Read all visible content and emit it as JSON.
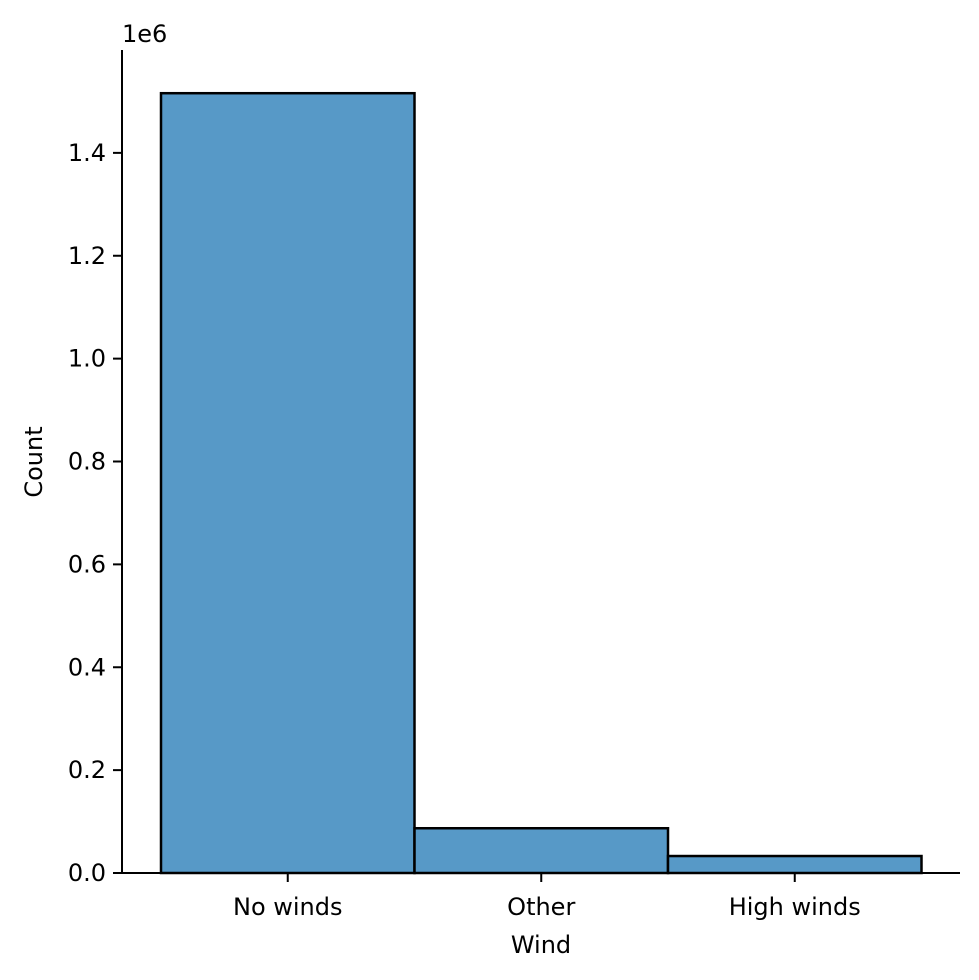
{
  "chart_data": {
    "type": "bar",
    "categories": [
      "No winds",
      "Other",
      "High winds"
    ],
    "values": [
      1516000,
      87000,
      33000
    ],
    "xlabel": "Wind",
    "ylabel": "Count",
    "ylim": [
      0,
      1600000
    ],
    "yticks": [
      0,
      200000,
      400000,
      600000,
      800000,
      1000000,
      1200000,
      1400000
    ],
    "ytick_labels": [
      "0.0",
      "0.2",
      "0.4",
      "0.6",
      "0.8",
      "1.0",
      "1.2",
      "1.4"
    ],
    "y_offset_label": "1e6",
    "grid": false,
    "legend": "none",
    "colors": {
      "bar_fill": "#5799c7",
      "bar_edge": "#000000",
      "axis": "#000000"
    }
  }
}
